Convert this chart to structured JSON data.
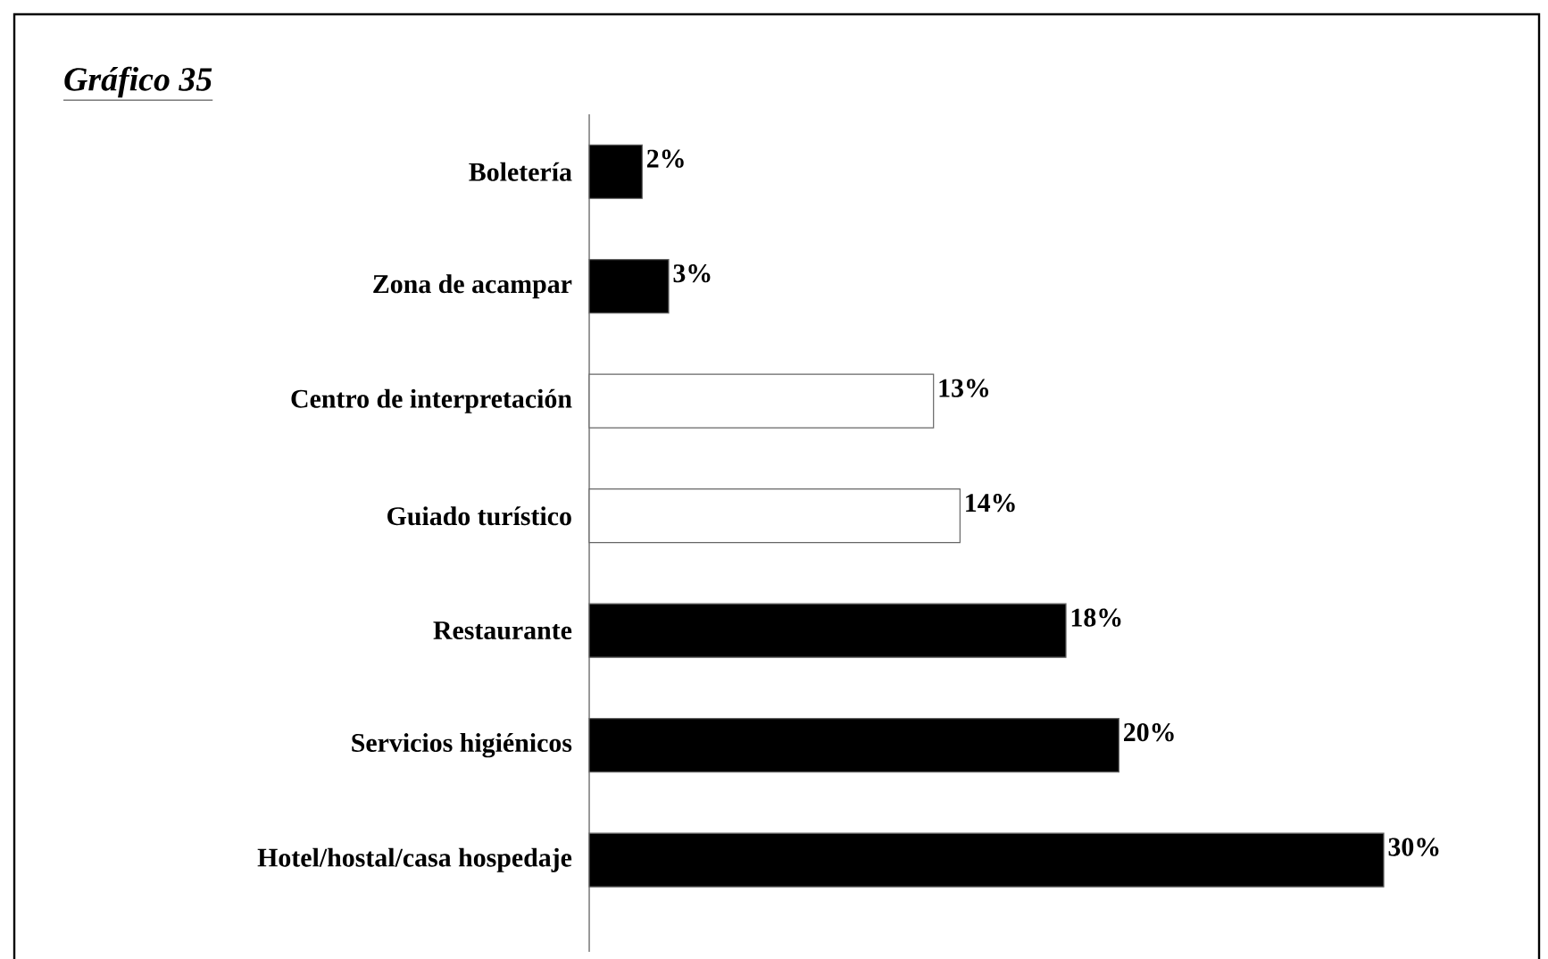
{
  "chart_data": {
    "type": "bar",
    "orientation": "horizontal",
    "title": "*Gráfico 35*",
    "categories": [
      "Boletería",
      "Zona de acampar",
      "Centro de interpretación",
      "Guiado turístico",
      "Restaurante",
      "Servicios higiénicos",
      "Hotel/hostal/casa hospedaje"
    ],
    "values": [
      2,
      3,
      13,
      14,
      18,
      20,
      30
    ],
    "colors": [
      "#000000",
      "#000000",
      "#ffffff",
      "#ffffff",
      "#000000",
      "#000000",
      "#000000"
    ],
    "value_labels": [
      "2%",
      "3%",
      "13%",
      "14%",
      "18%",
      "20%",
      "30%"
    ]
  }
}
